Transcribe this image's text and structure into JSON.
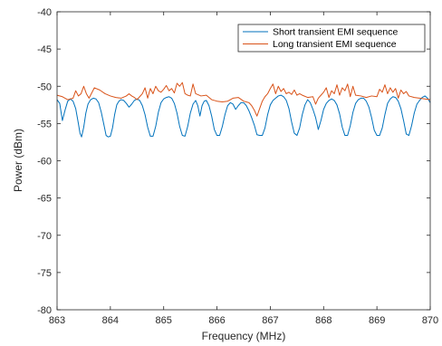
{
  "chart_data": {
    "type": "line",
    "title": "",
    "xlabel": "Frequency (MHz)",
    "ylabel": "Power (dBm)",
    "xlim": [
      863,
      870
    ],
    "ylim": [
      -80,
      -40
    ],
    "x_ticks": [
      863,
      864,
      865,
      866,
      867,
      868,
      869,
      870
    ],
    "x_tick_labels": [
      "863",
      "864",
      "865",
      "866",
      "867",
      "868",
      "869",
      "870"
    ],
    "y_ticks": [
      -80,
      -75,
      -70,
      -65,
      -60,
      -55,
      -50,
      -45,
      -40
    ],
    "y_tick_labels": [
      "-80",
      "-75",
      "-70",
      "-65",
      "-60",
      "-55",
      "-50",
      "-45",
      "-40"
    ],
    "grid": false,
    "legend_position": "top-right",
    "series": [
      {
        "name": "Short transient EMI sequence",
        "color": "#0072BD",
        "x": [
          863.0,
          863.05,
          863.1,
          863.15,
          863.2,
          863.25,
          863.3,
          863.35,
          863.4,
          863.43,
          863.46,
          863.5,
          863.54,
          863.58,
          863.63,
          863.68,
          863.73,
          863.78,
          863.83,
          863.88,
          863.92,
          863.96,
          864.0,
          864.04,
          864.08,
          864.12,
          864.16,
          864.2,
          864.25,
          864.3,
          864.35,
          864.4,
          864.45,
          864.5,
          864.55,
          864.6,
          864.65,
          864.7,
          864.75,
          864.8,
          864.85,
          864.9,
          864.95,
          865.0,
          865.05,
          865.1,
          865.15,
          865.2,
          865.25,
          865.3,
          865.35,
          865.4,
          865.45,
          865.5,
          865.55,
          865.6,
          865.64,
          865.68,
          865.72,
          865.76,
          865.8,
          865.85,
          865.9,
          865.95,
          866.0,
          866.05,
          866.1,
          866.15,
          866.2,
          866.25,
          866.3,
          866.35,
          866.4,
          866.45,
          866.5,
          866.55,
          866.6,
          866.65,
          866.7,
          866.75,
          866.8,
          866.85,
          866.9,
          866.95,
          867.0,
          867.05,
          867.1,
          867.15,
          867.2,
          867.25,
          867.3,
          867.35,
          867.4,
          867.45,
          867.5,
          867.55,
          867.6,
          867.65,
          867.7,
          867.75,
          867.8,
          867.85,
          867.9,
          867.95,
          868.0,
          868.05,
          868.1,
          868.15,
          868.2,
          868.25,
          868.3,
          868.35,
          868.4,
          868.45,
          868.5,
          868.55,
          868.6,
          868.65,
          868.7,
          868.75,
          868.8,
          868.85,
          868.9,
          868.95,
          869.0,
          869.05,
          869.1,
          869.15,
          869.2,
          869.25,
          869.3,
          869.35,
          869.4,
          869.45,
          869.5,
          869.55,
          869.6,
          869.65,
          869.7,
          869.75,
          869.8,
          869.85,
          869.9,
          869.95,
          870.0
        ],
        "y": [
          -51.8,
          -52.3,
          -54.6,
          -53.2,
          -52.0,
          -51.7,
          -52.0,
          -53.0,
          -55.0,
          -56.3,
          -56.8,
          -55.5,
          -53.6,
          -52.4,
          -51.8,
          -51.6,
          -51.7,
          -52.2,
          -53.5,
          -55.2,
          -56.6,
          -56.8,
          -56.7,
          -55.6,
          -53.8,
          -52.5,
          -52.0,
          -51.8,
          -51.9,
          -52.3,
          -52.8,
          -52.4,
          -51.9,
          -51.7,
          -51.9,
          -52.6,
          -53.8,
          -55.5,
          -56.7,
          -56.7,
          -55.4,
          -53.5,
          -52.2,
          -51.7,
          -51.5,
          -51.4,
          -51.6,
          -52.3,
          -53.6,
          -55.4,
          -56.6,
          -56.7,
          -55.4,
          -53.6,
          -52.4,
          -51.9,
          -52.6,
          -54.0,
          -52.6,
          -52.0,
          -51.9,
          -52.6,
          -54.0,
          -55.8,
          -56.6,
          -56.6,
          -55.4,
          -53.8,
          -52.6,
          -52.2,
          -52.4,
          -53.1,
          -52.6,
          -52.2,
          -52.2,
          -52.6,
          -53.3,
          -54.2,
          -55.2,
          -56.5,
          -56.6,
          -56.6,
          -55.6,
          -53.8,
          -52.5,
          -51.9,
          -51.6,
          -51.3,
          -51.2,
          -51.4,
          -51.9,
          -53.0,
          -54.8,
          -56.3,
          -56.6,
          -55.6,
          -53.8,
          -52.5,
          -51.8,
          -52.2,
          -53.1,
          -54.2,
          -55.8,
          -54.6,
          -53.1,
          -52.3,
          -51.9,
          -51.7,
          -51.9,
          -52.5,
          -53.7,
          -55.5,
          -56.6,
          -56.6,
          -55.3,
          -53.5,
          -52.3,
          -51.8,
          -51.6,
          -51.6,
          -52.0,
          -52.8,
          -54.2,
          -55.9,
          -56.6,
          -56.6,
          -55.6,
          -53.8,
          -52.3,
          -51.7,
          -51.4,
          -51.5,
          -52.0,
          -53.0,
          -54.6,
          -56.4,
          -56.6,
          -55.3,
          -53.6,
          -52.4,
          -51.9,
          -51.5,
          -51.3,
          -51.6,
          -52.2
        ]
      },
      {
        "name": "Long transient EMI sequence",
        "color": "#D95319",
        "x": [
          863.0,
          863.1,
          863.2,
          863.3,
          863.35,
          863.4,
          863.45,
          863.5,
          863.55,
          863.6,
          863.7,
          863.8,
          863.9,
          864.0,
          864.1,
          864.2,
          864.3,
          864.35,
          864.4,
          864.45,
          864.5,
          864.55,
          864.6,
          864.65,
          864.7,
          864.75,
          864.8,
          864.85,
          864.9,
          864.95,
          865.0,
          865.05,
          865.1,
          865.15,
          865.2,
          865.25,
          865.3,
          865.35,
          865.4,
          865.45,
          865.5,
          865.55,
          865.6,
          865.7,
          865.8,
          865.9,
          866.0,
          866.1,
          866.2,
          866.3,
          866.4,
          866.5,
          866.6,
          866.65,
          866.7,
          866.75,
          866.8,
          866.85,
          866.9,
          866.95,
          867.0,
          867.05,
          867.1,
          867.15,
          867.2,
          867.25,
          867.3,
          867.35,
          867.4,
          867.45,
          867.5,
          867.55,
          867.6,
          867.7,
          867.8,
          867.85,
          867.9,
          867.95,
          868.0,
          868.05,
          868.1,
          868.15,
          868.2,
          868.25,
          868.3,
          868.35,
          868.4,
          868.45,
          868.5,
          868.55,
          868.6,
          868.7,
          868.8,
          868.9,
          869.0,
          869.05,
          869.1,
          869.15,
          869.2,
          869.25,
          869.3,
          869.35,
          869.4,
          869.45,
          869.5,
          869.55,
          869.6,
          869.7,
          869.8,
          869.9,
          870.0
        ],
        "y": [
          -51.2,
          -51.4,
          -51.8,
          -51.6,
          -50.6,
          -51.3,
          -51.0,
          -50.0,
          -51.0,
          -51.6,
          -50.2,
          -50.5,
          -51.0,
          -51.3,
          -51.5,
          -51.6,
          -51.3,
          -51.0,
          -51.3,
          -51.5,
          -51.8,
          -51.4,
          -51.0,
          -50.2,
          -51.6,
          -50.3,
          -51.0,
          -50.0,
          -50.6,
          -50.8,
          -50.4,
          -49.9,
          -50.6,
          -50.3,
          -50.9,
          -49.6,
          -50.0,
          -49.5,
          -51.0,
          -51.2,
          -51.3,
          -49.7,
          -51.0,
          -51.3,
          -51.2,
          -51.8,
          -52.0,
          -52.1,
          -52.0,
          -51.6,
          -51.5,
          -52.0,
          -52.2,
          -52.6,
          -53.2,
          -54.0,
          -53.0,
          -52.0,
          -51.4,
          -51.0,
          -50.3,
          -49.7,
          -51.0,
          -50.0,
          -50.7,
          -50.3,
          -51.0,
          -50.8,
          -51.1,
          -50.5,
          -51.2,
          -51.0,
          -51.2,
          -51.5,
          -51.4,
          -52.4,
          -51.6,
          -51.2,
          -50.8,
          -50.2,
          -51.5,
          -50.6,
          -51.0,
          -49.8,
          -51.2,
          -50.2,
          -50.6,
          -49.7,
          -51.4,
          -50.0,
          -51.2,
          -51.3,
          -51.5,
          -51.3,
          -51.4,
          -50.4,
          -50.8,
          -49.8,
          -51.0,
          -50.2,
          -50.8,
          -50.3,
          -51.6,
          -50.5,
          -51.0,
          -50.7,
          -51.3,
          -51.5,
          -51.6,
          -51.7,
          -51.8
        ]
      }
    ]
  }
}
